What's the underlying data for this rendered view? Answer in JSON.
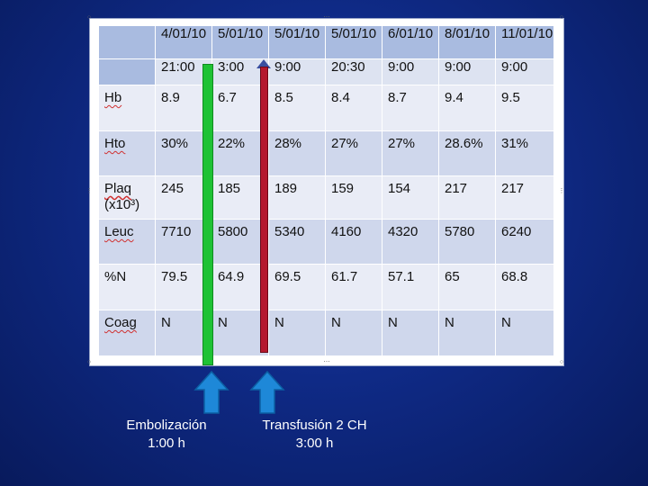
{
  "table": {
    "dates": [
      "",
      "4/01/10",
      "5/01/10",
      "5/01/10",
      "5/01/10",
      "6/01/10",
      "8/01/10",
      "11/01/10"
    ],
    "times": [
      "",
      "21:00",
      "3:00",
      "9:00",
      "20:30",
      "9:00",
      "9:00",
      "9:00"
    ],
    "rows": [
      {
        "label": "Hb",
        "values": [
          "8.9",
          "6.7",
          "8.5",
          "8.4",
          "8.7",
          "9.4",
          "9.5"
        ]
      },
      {
        "label": "Hto",
        "values": [
          "30%",
          "22%",
          "28%",
          "27%",
          "27%",
          "28.6%",
          "31%"
        ]
      },
      {
        "label": "Plaq",
        "label2": "(x10³)",
        "values": [
          "245",
          "185",
          "189",
          "159",
          "154",
          "217",
          "217"
        ]
      },
      {
        "label": "Leuc",
        "values": [
          "7710",
          "5800",
          "5340",
          "4160",
          "4320",
          "5780",
          "6240"
        ]
      },
      {
        "label": "%N",
        "values": [
          "79.5",
          "64.9",
          "69.5",
          "61.7",
          "57.1",
          "65",
          "68.8"
        ]
      },
      {
        "label": "Coag",
        "values": [
          "N",
          "N",
          "N",
          "N",
          "N",
          "N",
          "N"
        ]
      }
    ]
  },
  "annotations": {
    "left": {
      "line1": "Embolización",
      "line2": "1:00 h"
    },
    "right": {
      "line1": "Transfusión 2 CH",
      "line2": "3:00 h"
    }
  },
  "colors": {
    "background": "#0f2a86",
    "header": "#a9bbe0",
    "row_light": "#e9ecf6",
    "row_dark": "#cfd7ec",
    "green_marker": "#1ec234",
    "red_marker": "#b5192e",
    "arrow": "#1e88d8"
  }
}
